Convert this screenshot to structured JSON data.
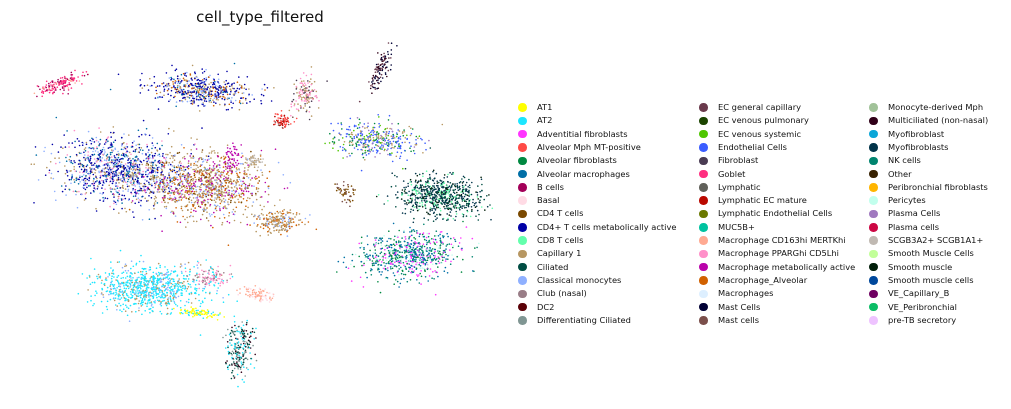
{
  "chart_data": {
    "type": "scatter",
    "title": "cell_type_filtered",
    "xlabel": "",
    "ylabel": "",
    "axes": false,
    "grid": false,
    "legend_position": "right",
    "legend_columns": 3,
    "categories": [
      {
        "name": "AT1",
        "color": "#ffff00"
      },
      {
        "name": "AT2",
        "color": "#1ce6ff"
      },
      {
        "name": "Adventitial fibroblasts",
        "color": "#ff34ff"
      },
      {
        "name": "Alveolar Mph MT-positive",
        "color": "#ff4a46"
      },
      {
        "name": "Alveolar fibroblasts",
        "color": "#008941"
      },
      {
        "name": "Alveolar macrophages",
        "color": "#006fa6"
      },
      {
        "name": "B cells",
        "color": "#a30059"
      },
      {
        "name": "Basal",
        "color": "#ffdbe5"
      },
      {
        "name": "CD4 T cells",
        "color": "#7a4900"
      },
      {
        "name": "CD4+ T cells metabolically active",
        "color": "#0000a6"
      },
      {
        "name": "CD8 T cells",
        "color": "#63ffac"
      },
      {
        "name": "Capillary 1",
        "color": "#b79762"
      },
      {
        "name": "Ciliated",
        "color": "#004d43"
      },
      {
        "name": "Classical monocytes",
        "color": "#8fb0ff"
      },
      {
        "name": "Club (nasal)",
        "color": "#997d87"
      },
      {
        "name": "DC2",
        "color": "#5a0007"
      },
      {
        "name": "Differentiating Ciliated",
        "color": "#809693"
      },
      {
        "name": "EC general capillary",
        "color": "#6a3a4c"
      },
      {
        "name": "EC venous pulmonary",
        "color": "#1b4400"
      },
      {
        "name": "EC venous systemic",
        "color": "#4fc601"
      },
      {
        "name": "Endothelial Cells",
        "color": "#3b5dff"
      },
      {
        "name": "Fibroblast",
        "color": "#4a3b53"
      },
      {
        "name": "Goblet",
        "color": "#ff2f80"
      },
      {
        "name": "Lymphatic",
        "color": "#61615a"
      },
      {
        "name": "Lymphatic EC mature",
        "color": "#ba0900"
      },
      {
        "name": "Lymphatic Endothelial Cells",
        "color": "#6b7900"
      },
      {
        "name": "MUC5B+",
        "color": "#00c2a0"
      },
      {
        "name": "Macrophage CD163hi MERTKhi",
        "color": "#ffaa92"
      },
      {
        "name": "Macrophage PPARGhi CD5Lhi",
        "color": "#ff90c9"
      },
      {
        "name": "Macrophage metabolically active",
        "color": "#b903aa"
      },
      {
        "name": "Macrophage_Alveolar",
        "color": "#d16100"
      },
      {
        "name": "Macrophages",
        "color": "#ddefff"
      },
      {
        "name": "Mast Cells",
        "color": "#000035"
      },
      {
        "name": "Mast cells",
        "color": "#7b4f4b"
      },
      {
        "name": "Monocyte-derived Mph",
        "color": "#a1c299"
      },
      {
        "name": "Multiciliated (non-nasal)",
        "color": "#300018"
      },
      {
        "name": "Myofibroblast",
        "color": "#0aa6d8"
      },
      {
        "name": "Myofibroblasts",
        "color": "#013349"
      },
      {
        "name": "NK cells",
        "color": "#00846f"
      },
      {
        "name": "Other",
        "color": "#372101"
      },
      {
        "name": "Peribronchial fibroblasts",
        "color": "#ffb500"
      },
      {
        "name": "Pericytes",
        "color": "#c2ffed"
      },
      {
        "name": "Plasma Cells",
        "color": "#a079bf"
      },
      {
        "name": "Plasma cells",
        "color": "#cc0744"
      },
      {
        "name": "SCGB3A2+ SCGB1A1+",
        "color": "#c0b9b2"
      },
      {
        "name": "Smooth Muscle Cells",
        "color": "#c2ff99"
      },
      {
        "name": "Smooth muscle",
        "color": "#001e09"
      },
      {
        "name": "Smooth muscle cells",
        "color": "#00489c"
      },
      {
        "name": "VE_Capillary_B",
        "color": "#6f0062"
      },
      {
        "name": "VE_Peribronchial",
        "color": "#0cbd66"
      },
      {
        "name": "pre-TB secretory",
        "color": "#eec3ff"
      }
    ]
  }
}
